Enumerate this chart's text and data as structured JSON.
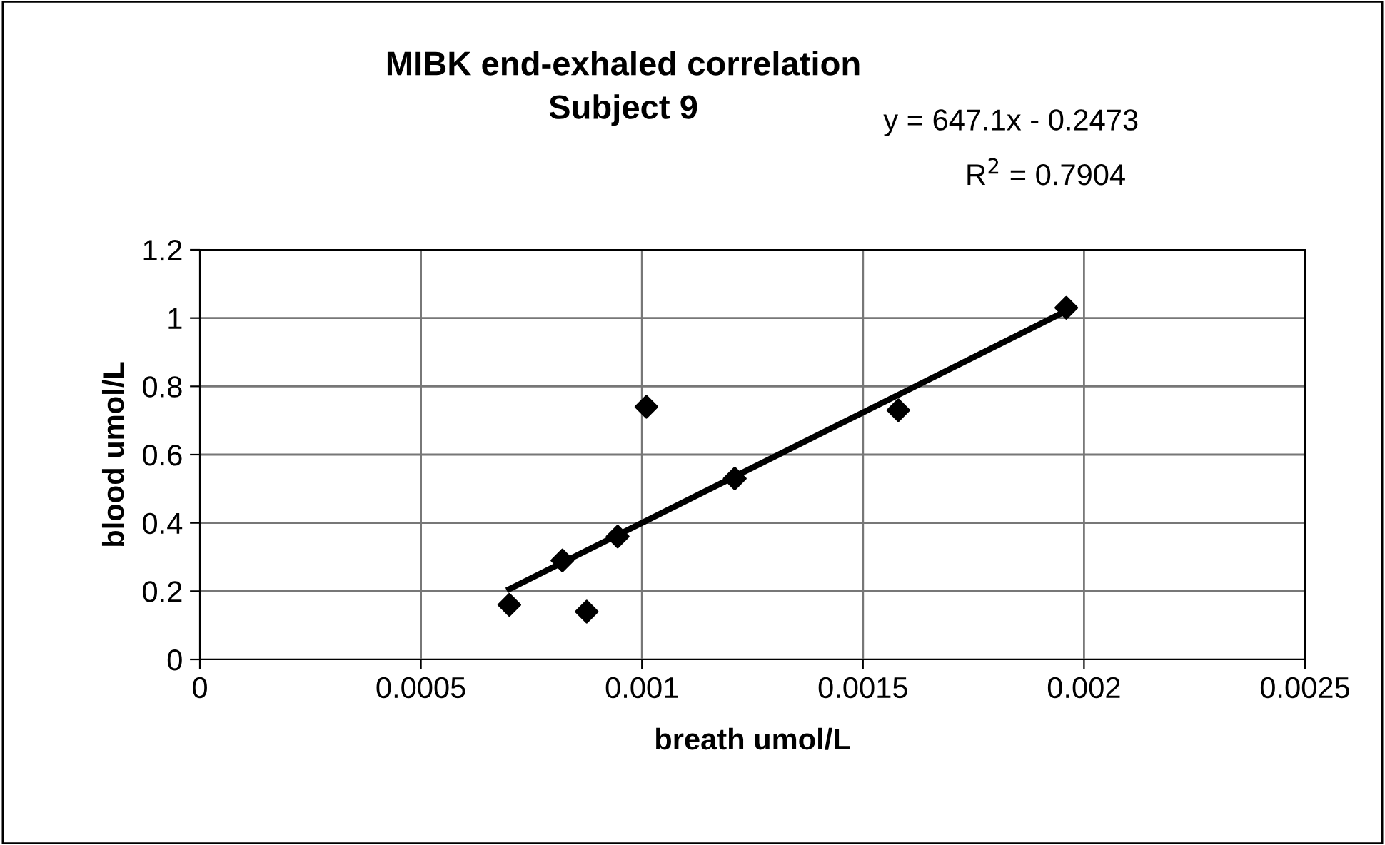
{
  "chart_data": {
    "type": "scatter",
    "title": "MIBK end-exhaled correlation\nSubject 9",
    "xlabel": "breath umol/L",
    "ylabel": "blood umol/L",
    "annotations": [
      "y = 647.1x - 0.2473",
      "R$^{2}$ = 0.7904"
    ],
    "series": [
      {
        "color": "#000000",
        "marker": "diamond",
        "x": [
          0.0007,
          0.00082,
          0.000875,
          0.000945,
          0.00101,
          0.00121,
          0.00158,
          0.00196
        ],
        "values": [
          0.16,
          0.29,
          0.14,
          0.36,
          0.74,
          0.53,
          0.73,
          1.03
        ]
      },
      {
        "type": "line",
        "color": "#000000",
        "marker": "none",
        "x": [
          0.0007,
          0.00196
        ],
        "values": [
          0.206,
          1.021
        ]
      }
    ],
    "xlim": [
      0,
      0.0025
    ],
    "xticks": [
      0,
      0.0005,
      0.001,
      0.0015,
      0.002,
      0.0025
    ],
    "ylim": [
      0,
      1.2
    ],
    "yticks": [
      0,
      0.2,
      0.4,
      0.6,
      0.8,
      1,
      1.2
    ],
    "grid": true
  }
}
